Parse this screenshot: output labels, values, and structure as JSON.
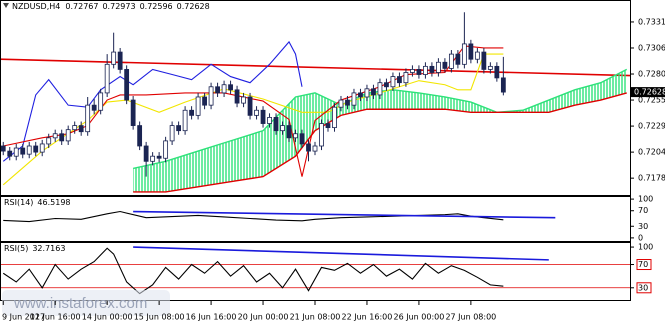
{
  "watermark": "www.instaforex.com",
  "chart_data": [
    {
      "type": "candlestick",
      "title": "NZDUSD,H4",
      "up_color": "#ffffff",
      "down_color": "#1b2452",
      "edge_color": "#1b2452",
      "xlim": [
        -0.5,
        96.5
      ],
      "ylim": [
        0.7162,
        0.7353
      ],
      "yticks": [
        0.73315,
        {
          "value": 0.7306,
          "label": "0.73060"
        },
        0.72805,
        {
          "value": 0.7255,
          "label": "0.72550"
        },
        0.72295,
        {
          "value": 0.7204,
          "label": "0.72040"
        },
        0.71785
      ],
      "open": [
        0.721,
        0.7205,
        0.72,
        0.7208,
        0.7202,
        0.721,
        0.7204,
        0.7212,
        0.7218,
        0.7222,
        0.7215,
        0.7226,
        0.723,
        0.7224,
        0.725,
        0.7245,
        0.7262,
        0.729,
        0.7302,
        0.7285,
        0.7255,
        0.723,
        0.721,
        0.7195,
        0.72,
        0.7198,
        0.7215,
        0.723,
        0.7225,
        0.7245,
        0.724,
        0.7258,
        0.725,
        0.7268,
        0.7262,
        0.727,
        0.7265,
        0.7252,
        0.7258,
        0.724,
        0.7245,
        0.7232,
        0.7238,
        0.7225,
        0.723,
        0.7218,
        0.7222,
        0.7212,
        0.7205,
        0.721,
        0.7232,
        0.7228,
        0.7248,
        0.7255,
        0.725,
        0.7262,
        0.7258,
        0.7266,
        0.726,
        0.7272,
        0.7268,
        0.7278,
        0.7272,
        0.7282,
        0.7285,
        0.728,
        0.7288,
        0.7282,
        0.7292,
        0.7286,
        0.73,
        0.729,
        0.731,
        0.7295,
        0.7302,
        0.7285,
        0.7288,
        0.72767
      ],
      "high": [
        0.7214,
        0.7209,
        0.7212,
        0.7212,
        0.7214,
        0.7214,
        0.7216,
        0.7222,
        0.7226,
        0.7226,
        0.723,
        0.7234,
        0.7234,
        0.7258,
        0.7256,
        0.7266,
        0.73,
        0.7321,
        0.7306,
        0.7289,
        0.7259,
        0.7234,
        0.7214,
        0.7204,
        0.7204,
        0.7219,
        0.7234,
        0.7234,
        0.7249,
        0.7249,
        0.7262,
        0.7262,
        0.7272,
        0.7272,
        0.7274,
        0.7274,
        0.7269,
        0.7262,
        0.7262,
        0.7249,
        0.7249,
        0.7242,
        0.7242,
        0.7234,
        0.7234,
        0.7226,
        0.7226,
        0.7216,
        0.7214,
        0.7236,
        0.7236,
        0.7252,
        0.7259,
        0.7259,
        0.7266,
        0.7266,
        0.727,
        0.727,
        0.7276,
        0.7276,
        0.7282,
        0.7282,
        0.7286,
        0.7289,
        0.7289,
        0.7292,
        0.7292,
        0.7296,
        0.7296,
        0.7304,
        0.7304,
        0.7341,
        0.7314,
        0.7306,
        0.7306,
        0.7292,
        0.7292,
        0.72973
      ],
      "low": [
        0.7201,
        0.7196,
        0.7196,
        0.7198,
        0.7198,
        0.72,
        0.72,
        0.7208,
        0.7214,
        0.7211,
        0.7211,
        0.7222,
        0.722,
        0.722,
        0.7241,
        0.7241,
        0.7258,
        0.7286,
        0.7281,
        0.7251,
        0.7226,
        0.7206,
        0.718,
        0.7191,
        0.7194,
        0.7194,
        0.7211,
        0.7221,
        0.7221,
        0.7236,
        0.7236,
        0.7246,
        0.7246,
        0.7258,
        0.7258,
        0.7261,
        0.7248,
        0.7248,
        0.7236,
        0.7236,
        0.7228,
        0.7228,
        0.7221,
        0.7221,
        0.7214,
        0.7214,
        0.7208,
        0.7195,
        0.7201,
        0.7206,
        0.7224,
        0.7224,
        0.7244,
        0.7246,
        0.7246,
        0.7254,
        0.7254,
        0.7256,
        0.7256,
        0.7264,
        0.7264,
        0.7268,
        0.7268,
        0.7278,
        0.7276,
        0.7276,
        0.7278,
        0.7278,
        0.7282,
        0.7282,
        0.7286,
        0.7286,
        0.7291,
        0.7291,
        0.7281,
        0.7281,
        0.7273,
        0.72596
      ],
      "close": [
        0.7205,
        0.72,
        0.7208,
        0.7202,
        0.721,
        0.7204,
        0.7212,
        0.7218,
        0.7222,
        0.7215,
        0.7226,
        0.723,
        0.7224,
        0.725,
        0.7245,
        0.7262,
        0.729,
        0.7302,
        0.7285,
        0.7255,
        0.723,
        0.721,
        0.7195,
        0.72,
        0.7198,
        0.7215,
        0.723,
        0.7225,
        0.7245,
        0.724,
        0.7258,
        0.725,
        0.7268,
        0.7262,
        0.727,
        0.7265,
        0.7252,
        0.7258,
        0.724,
        0.7245,
        0.7232,
        0.7238,
        0.7225,
        0.723,
        0.7218,
        0.7222,
        0.7212,
        0.7205,
        0.721,
        0.7232,
        0.7228,
        0.7248,
        0.7255,
        0.725,
        0.7262,
        0.7258,
        0.7266,
        0.726,
        0.7272,
        0.7268,
        0.7278,
        0.7272,
        0.7282,
        0.7285,
        0.728,
        0.7288,
        0.7282,
        0.7292,
        0.7286,
        0.73,
        0.729,
        0.731,
        0.7295,
        0.7302,
        0.7285,
        0.7288,
        0.72767,
        0.72628
      ],
      "cloud": {
        "color": "#2ee27a",
        "span_b_color": "#e00000",
        "x": [
          20,
          25,
          30,
          35,
          40,
          45,
          48,
          52,
          56,
          60,
          64,
          68,
          72,
          76,
          80,
          84,
          88,
          92,
          96
        ],
        "span_a": [
          0.7188,
          0.7195,
          0.7205,
          0.7215,
          0.7225,
          0.7258,
          0.7262,
          0.725,
          0.7262,
          0.7265,
          0.7262,
          0.7258,
          0.7253,
          0.7243,
          0.7245,
          0.7255,
          0.7265,
          0.7272,
          0.7285
        ],
        "span_b": [
          0.7165,
          0.7165,
          0.717,
          0.7175,
          0.718,
          0.72,
          0.7225,
          0.724,
          0.7246,
          0.7246,
          0.7246,
          0.7246,
          0.7243,
          0.7243,
          0.7243,
          0.7243,
          0.725,
          0.7255,
          0.7262
        ]
      },
      "lines": [
        {
          "color": "#2020e0",
          "x": [
            0,
            3,
            5,
            7,
            10,
            13,
            15,
            18,
            20,
            23,
            26,
            29,
            32,
            35,
            38,
            41,
            44,
            45,
            46
          ],
          "values": [
            0.7195,
            0.721,
            0.726,
            0.7275,
            0.725,
            0.7248,
            0.7265,
            0.7278,
            0.727,
            0.7285,
            0.728,
            0.7275,
            0.729,
            0.7278,
            0.7272,
            0.729,
            0.7312,
            0.73,
            0.7268
          ]
        },
        {
          "color": "#f2e600",
          "x": [
            0,
            6,
            9,
            13,
            16,
            19,
            24,
            28,
            34,
            40,
            46,
            50,
            53,
            58,
            64,
            68,
            70,
            72,
            74,
            77
          ],
          "values": [
            0.7172,
            0.7205,
            0.7218,
            0.7235,
            0.7253,
            0.7255,
            0.7243,
            0.7253,
            0.7266,
            0.7256,
            0.7243,
            0.7243,
            0.7253,
            0.7262,
            0.7274,
            0.727,
            0.7265,
            0.7265,
            0.73,
            0.73
          ]
        },
        {
          "color": "#e00000",
          "x": [
            0,
            6,
            10,
            13,
            16,
            18,
            22,
            28,
            34,
            40,
            44,
            46,
            48,
            52,
            58,
            62,
            68,
            71,
            74,
            77
          ],
          "values": [
            0.721,
            0.7218,
            0.7222,
            0.723,
            0.7255,
            0.726,
            0.726,
            0.7262,
            0.7262,
            0.7254,
            0.7236,
            0.718,
            0.7235,
            0.7255,
            0.7268,
            0.728,
            0.7282,
            0.7308,
            0.7306,
            0.7306
          ]
        }
      ],
      "trendline": {
        "color": "#e00000",
        "x": [
          -0.5,
          96.5
        ],
        "values": [
          0.7295,
          0.7279
        ]
      }
    },
    {
      "type": "line",
      "label": "RSI(14)",
      "value": 46.5198,
      "color": "#000000",
      "xlim": [
        -0.5,
        96.5
      ],
      "ylim": [
        -8,
        108
      ],
      "yticks": [
        100,
        70,
        30,
        0
      ],
      "x": [
        0,
        4,
        8,
        12,
        16,
        18,
        22,
        26,
        30,
        34,
        38,
        42,
        46,
        48,
        52,
        56,
        60,
        64,
        68,
        70,
        72,
        74,
        77
      ],
      "values": [
        45,
        42,
        50,
        48,
        62,
        68,
        52,
        55,
        58,
        54,
        50,
        46,
        44,
        48,
        52,
        54,
        56,
        58,
        60,
        62,
        56,
        52,
        46.5198
      ],
      "trendline": {
        "color": "#1a1adc",
        "x": [
          20,
          85
        ],
        "values": [
          68,
          52
        ]
      }
    },
    {
      "type": "line",
      "label": "RSI(5)",
      "value": 32.7163,
      "color": "#000000",
      "xlim": [
        -0.5,
        96.5
      ],
      "ylim": [
        9,
        107
      ],
      "yticks": [
        100,
        70,
        30
      ],
      "levels": [
        70,
        30
      ],
      "level_color": "#e00000",
      "x": [
        0,
        2,
        4,
        6,
        8,
        10,
        12,
        14,
        16,
        17,
        19,
        21,
        23,
        25,
        27,
        29,
        31,
        33,
        35,
        37,
        39,
        41,
        43,
        45,
        47,
        49,
        51,
        53,
        55,
        57,
        59,
        61,
        63,
        65,
        67,
        69,
        71,
        73,
        75,
        77
      ],
      "values": [
        55,
        40,
        62,
        30,
        70,
        45,
        62,
        75,
        98,
        88,
        40,
        20,
        35,
        65,
        45,
        70,
        55,
        75,
        50,
        68,
        40,
        55,
        30,
        62,
        25,
        65,
        60,
        72,
        55,
        70,
        50,
        62,
        45,
        72,
        55,
        68,
        60,
        48,
        35,
        32.7163
      ],
      "trendline": {
        "color": "#1a1adc",
        "x": [
          20,
          84
        ],
        "values": [
          100,
          78
        ]
      },
      "xticks": [
        {
          "value": 0,
          "label": "9 Jun 2017"
        },
        {
          "value": 8,
          "label": "12 Jun 16:00"
        },
        {
          "value": 16,
          "label": "14 Jun 00:00"
        },
        {
          "value": 24,
          "label": "15 Jun 08:00"
        },
        {
          "value": 32,
          "label": "16 Jun 16:00"
        },
        {
          "value": 40,
          "label": "20 Jun 00:00"
        },
        {
          "value": 48,
          "label": "21 Jun 08:00"
        },
        {
          "value": 56,
          "label": "22 Jun 16:00"
        },
        {
          "value": 64,
          "label": "26 Jun 00:00"
        },
        {
          "value": 72,
          "label": "27 Jun 08:00"
        }
      ]
    }
  ]
}
